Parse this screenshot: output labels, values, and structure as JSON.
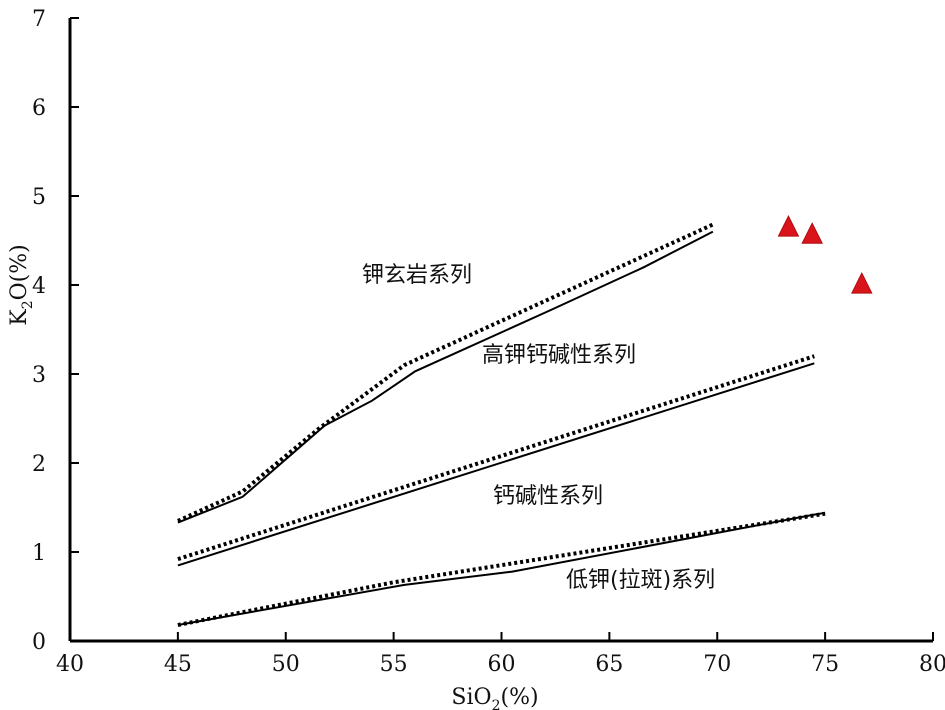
{
  "chart_data": {
    "type": "line",
    "xlabel": "SiO2(%)",
    "ylabel": "K2O(%)",
    "xlim": [
      40,
      80
    ],
    "ylim": [
      0,
      7
    ],
    "x_ticks": [
      40,
      45,
      50,
      55,
      60,
      65,
      70,
      75,
      80
    ],
    "y_ticks": [
      0,
      1,
      2,
      3,
      4,
      5,
      6,
      7
    ],
    "grid": false,
    "legend": "none",
    "colors": {
      "line": "#000000",
      "marker": "#d9141b"
    },
    "boundary_lines": [
      {
        "style": "solid",
        "points": [
          [
            45,
            1.33
          ],
          [
            48,
            1.62
          ],
          [
            51.8,
            2.42
          ],
          [
            54,
            2.7
          ],
          [
            56,
            3.03
          ],
          [
            62.3,
            3.72
          ],
          [
            66.6,
            4.2
          ],
          [
            69.8,
            4.6
          ]
        ]
      },
      {
        "style": "dotted",
        "points": [
          [
            45,
            1.35
          ],
          [
            48,
            1.68
          ],
          [
            51.5,
            2.38
          ],
          [
            55.5,
            3.1
          ],
          [
            69.8,
            4.68
          ]
        ]
      },
      {
        "style": "solid",
        "points": [
          [
            45,
            0.85
          ],
          [
            74.5,
            3.12
          ]
        ]
      },
      {
        "style": "dotted",
        "points": [
          [
            45,
            0.92
          ],
          [
            74.5,
            3.2
          ]
        ]
      },
      {
        "style": "solid",
        "points": [
          [
            45,
            0.18
          ],
          [
            55.5,
            0.63
          ],
          [
            60.5,
            0.78
          ],
          [
            74.5,
            1.42
          ],
          [
            75,
            1.44
          ]
        ]
      },
      {
        "style": "dotted",
        "points": [
          [
            45,
            0.18
          ],
          [
            55,
            0.66
          ],
          [
            75,
            1.43
          ]
        ]
      }
    ],
    "region_labels": [
      "钾玄岩系列",
      "高钾钙碱性系列",
      "钙碱性系列",
      "低钾(拉斑)系列"
    ],
    "points": {
      "marker": "triangle",
      "values": [
        [
          73.3,
          4.65
        ],
        [
          74.4,
          4.57
        ],
        [
          76.7,
          4.01
        ]
      ]
    }
  }
}
